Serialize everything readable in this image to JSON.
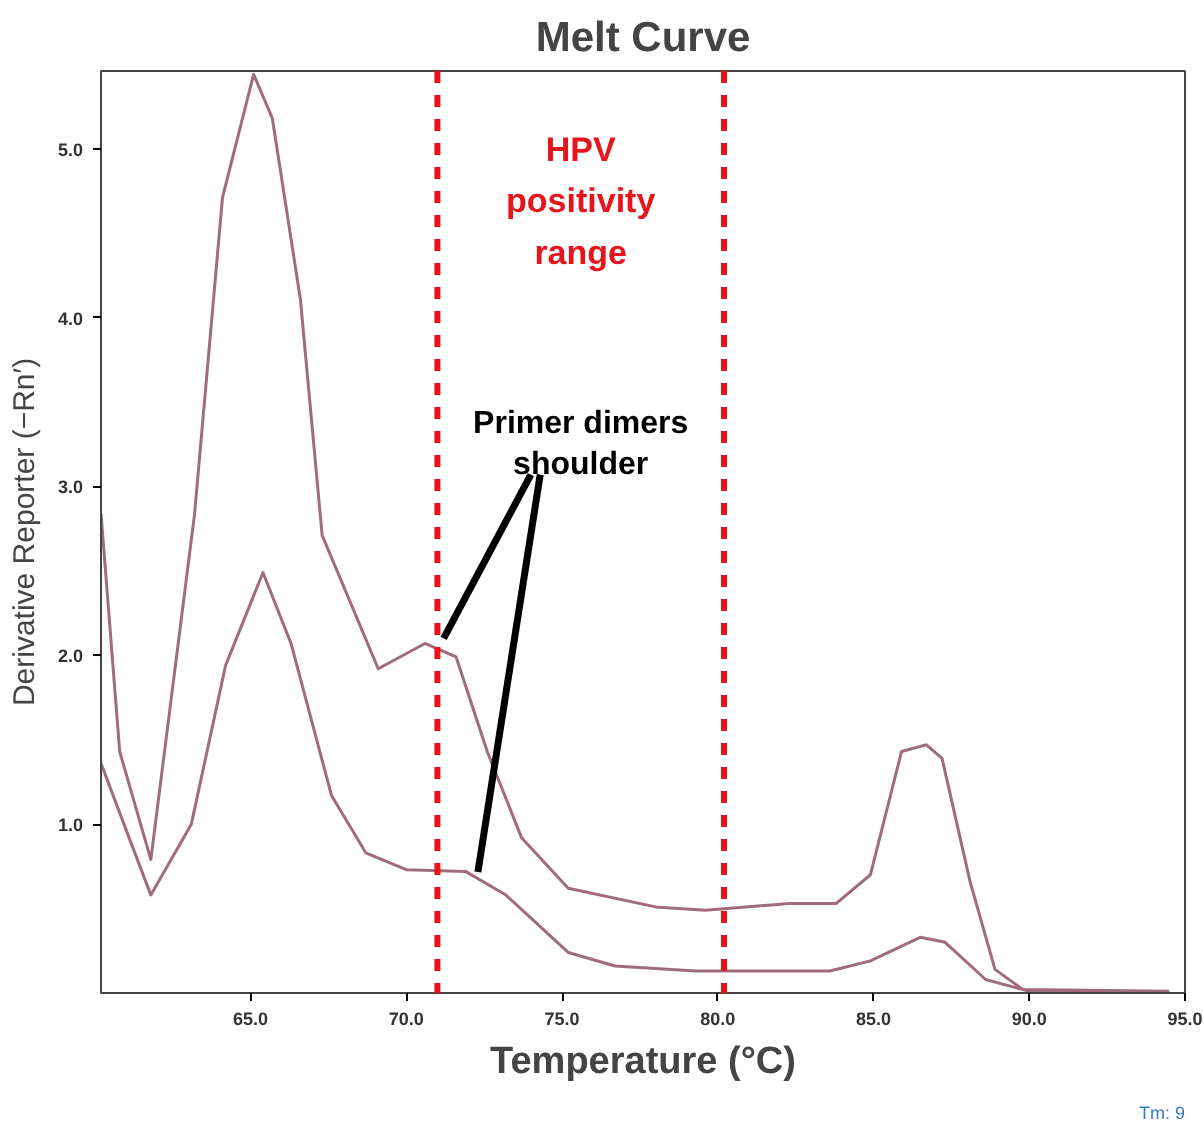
{
  "chart_data": {
    "type": "line",
    "title": "Melt Curve",
    "xlabel": "Temperature (°C)",
    "ylabel": "Derivative Reporter (−Rn′)",
    "xlim": [
      60.2,
      95.0
    ],
    "ylim": [
      0,
      5.46
    ],
    "xticks": [
      {
        "value": 65,
        "label": "65.0"
      },
      {
        "value": 70,
        "label": "70.0"
      },
      {
        "value": 75,
        "label": "75.0"
      },
      {
        "value": 80,
        "label": "80.0"
      },
      {
        "value": 85,
        "label": "85.0"
      },
      {
        "value": 90,
        "label": "90.0"
      },
      {
        "value": 95,
        "label": "95.0"
      }
    ],
    "yticks": [
      {
        "value": 1,
        "label": "1.0"
      },
      {
        "value": 2,
        "label": "2.0"
      },
      {
        "value": 3,
        "label": "3.0"
      },
      {
        "value": 4,
        "label": "4.0"
      },
      {
        "value": 5,
        "label": "5.0"
      }
    ],
    "grid": false,
    "marker": "none",
    "line_style": "solid",
    "series": [
      {
        "color": "#a06c7c",
        "x": [
          60.2,
          60.8,
          61.8,
          63.2,
          64.1,
          65.1,
          65.7,
          66.6,
          67.3,
          69.1,
          70.6,
          71.6,
          72.6,
          73.7,
          75.2,
          78.0,
          79.6,
          82.3,
          83.8,
          84.9,
          85.9,
          86.7,
          87.2,
          88.1,
          88.9,
          89.8,
          94.5
        ],
        "values": [
          2.84,
          1.43,
          0.79,
          2.83,
          4.71,
          5.44,
          5.18,
          4.11,
          2.71,
          1.92,
          2.07,
          1.99,
          1.43,
          0.92,
          0.62,
          0.51,
          0.49,
          0.53,
          0.53,
          0.7,
          1.43,
          1.47,
          1.39,
          0.66,
          0.14,
          0.02,
          0.01
        ]
      },
      {
        "color": "#a06c7c",
        "x": [
          60.2,
          61.1,
          61.8,
          63.1,
          64.2,
          65.4,
          66.3,
          67.6,
          68.7,
          70.0,
          71.9,
          73.2,
          75.2,
          76.7,
          79.3,
          83.6,
          84.9,
          86.5,
          87.3,
          88.6,
          90.0,
          94.4
        ],
        "values": [
          1.36,
          0.92,
          0.58,
          1.0,
          1.94,
          2.49,
          2.07,
          1.17,
          0.83,
          0.73,
          0.72,
          0.58,
          0.24,
          0.16,
          0.13,
          0.13,
          0.19,
          0.33,
          0.3,
          0.08,
          0.01,
          0.0
        ]
      }
    ],
    "ref_lines": [
      {
        "axis": "x",
        "value": 71.0,
        "color": "#e8141b",
        "line_style": "dashed"
      },
      {
        "axis": "x",
        "value": 80.2,
        "color": "#e8141b",
        "line_style": "dashed"
      }
    ],
    "annotations": [
      "HPV positivity range",
      {
        "text": "Primer dimers shoulder",
        "x": 71.1,
        "y": 2.07
      },
      "Tm: 9"
    ]
  }
}
